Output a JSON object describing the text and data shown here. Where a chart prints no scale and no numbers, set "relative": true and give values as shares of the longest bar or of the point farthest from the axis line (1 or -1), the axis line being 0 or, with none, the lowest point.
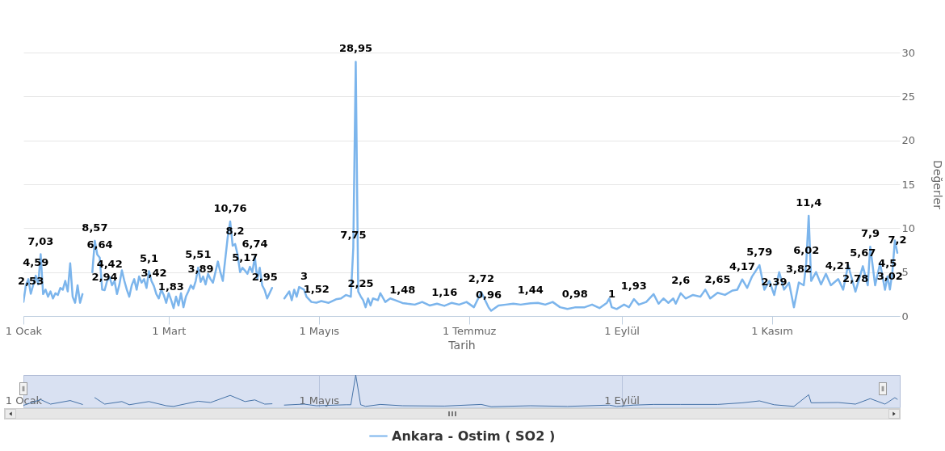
{
  "chart_data": [
    {
      "type": "line",
      "xlabel": "Tarih",
      "ylabel": "Değerler",
      "xlim": [
        "--01-01",
        "--12-23"
      ],
      "ylim": [
        0,
        30
      ],
      "yticks": [
        0,
        5,
        10,
        15,
        20,
        25,
        30
      ],
      "xticks": [
        {
          "value": "--01-01",
          "label": "1 Ocak"
        },
        {
          "value": "--03-01",
          "label": "1 Mart"
        },
        {
          "value": "--05-01",
          "label": "1 Mayıs"
        },
        {
          "value": "--07-01",
          "label": "1 Temmuz"
        },
        {
          "value": "--09-01",
          "label": "1 Eylül"
        },
        {
          "value": "--11-01",
          "label": "1 Kasım"
        }
      ],
      "grid": "y",
      "legend": "bottom",
      "marker": "none",
      "line_style": "solid",
      "x": [
        "--01-01",
        "--01-02",
        "--01-03",
        "--01-04",
        "--01-06",
        "--01-07",
        "--01-08",
        "--01-09",
        "--01-10",
        "--01-11",
        "--01-12",
        "--01-13",
        "--01-14",
        "--01-15",
        "--01-16",
        "--01-17",
        "--01-18",
        "--01-19",
        "--01-20",
        "--01-21",
        "--01-22",
        "--01-23",
        "--01-24",
        "--01-25",
        "--01-27",
        "--01-29",
        "--01-30",
        "--01-31",
        "--02-01",
        "--02-02",
        "--02-03",
        "--02-04",
        "--02-05",
        "--02-06",
        "--02-07",
        "--02-08",
        "--02-09",
        "--02-10",
        "--02-11",
        "--02-12",
        "--02-13",
        "--02-14",
        "--02-15",
        "--02-16",
        "--02-17",
        "--02-18",
        "--02-19",
        "--02-20",
        "--02-21",
        "--02-22",
        "--02-23",
        "--02-24",
        "--02-25",
        "--02-26",
        "--02-27",
        "--02-28",
        "--03-01",
        "--03-02",
        "--03-03",
        "--03-04",
        "--03-05",
        "--03-06",
        "--03-07",
        "--03-08",
        "--03-09",
        "--03-10",
        "--03-11",
        "--03-12",
        "--03-13",
        "--03-14",
        "--03-15",
        "--03-16",
        "--03-17",
        "--03-18",
        "--03-19",
        "--03-20",
        "--03-21",
        "--03-22",
        "--03-23",
        "--03-24",
        "--03-25",
        "--03-26",
        "--03-27",
        "--03-28",
        "--03-29",
        "--03-30",
        "--03-31",
        "--04-01",
        "--04-02",
        "--04-03",
        "--04-04",
        "--04-05",
        "--04-06",
        "--04-07",
        "--04-08",
        "--04-09",
        "--04-10",
        "--04-11",
        "--04-12",
        "--04-14",
        "--04-17",
        "--04-19",
        "--04-20",
        "--04-21",
        "--04-22",
        "--04-23",
        "--04-25",
        "--04-26",
        "--04-28",
        "--04-30",
        "--05-02",
        "--05-05",
        "--05-08",
        "--05-10",
        "--05-12",
        "--05-14",
        "--05-15",
        "--05-16",
        "--05-17",
        "--05-18",
        "--05-19",
        "--05-20",
        "--05-21",
        "--05-22",
        "--05-23",
        "--05-25",
        "--05-26",
        "--05-28",
        "--05-30",
        "--06-01",
        "--06-04",
        "--06-06",
        "--06-09",
        "--06-12",
        "--06-15",
        "--06-18",
        "--06-21",
        "--06-24",
        "--06-27",
        "--06-30",
        "--07-03",
        "--07-06",
        "--07-09",
        "--07-10",
        "--07-13",
        "--07-16",
        "--07-19",
        "--07-22",
        "--07-26",
        "--07-29",
        "--08-01",
        "--08-04",
        "--08-07",
        "--08-10",
        "--08-13",
        "--08-17",
        "--08-20",
        "--08-23",
        "--08-26",
        "--08-27",
        "--08-28",
        "--08-30",
        "--09-02",
        "--09-04",
        "--09-06",
        "--09-08",
        "--09-11",
        "--09-14",
        "--09-16",
        "--09-18",
        "--09-20",
        "--09-22",
        "--09-23",
        "--09-25",
        "--09-27",
        "--09-30",
        "--10-03",
        "--10-05",
        "--10-07",
        "--10-10",
        "--10-13",
        "--10-16",
        "--10-18",
        "--10-20",
        "--10-22",
        "--10-24",
        "--10-27",
        "--10-29",
        "--10-31",
        "--11-02",
        "--11-04",
        "--11-06",
        "--11-08",
        "--11-10",
        "--11-12",
        "--11-14",
        "--11-15",
        "--11-16",
        "--11-17",
        "--11-19",
        "--11-21",
        "--11-23",
        "--11-25",
        "--11-28",
        "--11-30",
        "--12-02",
        "--12-05",
        "--12-08",
        "--12-10",
        "--12-11",
        "--12-13",
        "--12-15",
        "--12-17",
        "--12-18",
        "--12-19",
        "--12-20",
        "--12-21",
        "--12-22"
      ],
      "series": [
        {
          "name": "Ankara - Ostim ( SO2 )",
          "color": "#7cb5ec",
          "values": [
            1.6,
            3.5,
            4.2,
            2.53,
            4.59,
            3.6,
            7.03,
            2.5,
            3.0,
            2.2,
            2.8,
            2.0,
            2.6,
            2.4,
            3.2,
            3.0,
            4.0,
            2.8,
            6.0,
            2.2,
            1.5,
            3.5,
            1.5,
            2.5,
            null,
            5.0,
            8.57,
            7.0,
            6.64,
            3.0,
            2.94,
            4.0,
            4.42,
            3.5,
            4.0,
            2.5,
            3.6,
            5.2,
            4.0,
            3.0,
            2.2,
            3.5,
            4.2,
            3.0,
            4.5,
            3.8,
            4.2,
            3.2,
            5.1,
            4.0,
            3.42,
            2.5,
            2.0,
            3.0,
            2.4,
            1.5,
            2.6,
            1.83,
            0.9,
            2.2,
            1.2,
            2.6,
            1.0,
            2.2,
            2.8,
            3.5,
            3.1,
            4.0,
            5.51,
            3.89,
            4.5,
            3.6,
            4.8,
            4.2,
            3.8,
            5.0,
            6.2,
            5.0,
            4.0,
            6.5,
            9.0,
            10.76,
            8.0,
            8.2,
            7.0,
            5.0,
            5.5,
            5.17,
            4.8,
            5.6,
            5.0,
            6.74,
            4.2,
            5.5,
            3.5,
            2.95,
            2.0,
            2.6,
            3.2,
            null,
            2.0,
            2.8,
            1.8,
            3.0,
            2.2,
            3.3,
            3,
            2.2,
            1.6,
            1.52,
            1.7,
            1.5,
            1.9,
            2.0,
            2.4,
            2.2,
            7.75,
            28.95,
            2.8,
            2.25,
            1.8,
            1.0,
            2.0,
            1.2,
            2.0,
            1.8,
            2.6,
            1.6,
            2.0,
            1.8,
            1.48,
            1.4,
            1.3,
            1.6,
            1.2,
            1.4,
            1.16,
            1.5,
            1.3,
            1.6,
            1.0,
            2.72,
            0.96,
            0.6,
            1.2,
            1.3,
            1.4,
            1.3,
            1.44,
            1.5,
            1.3,
            1.6,
            1.0,
            0.8,
            0.98,
            1.0,
            1.3,
            0.9,
            1.5,
            2.0,
            1,
            0.8,
            1.3,
            1.0,
            1.93,
            1.3,
            1.6,
            2.5,
            1.4,
            2.0,
            1.5,
            2.0,
            1.4,
            2.6,
            2.0,
            2.4,
            2.2,
            3.0,
            2.0,
            2.65,
            2.4,
            2.9,
            3.0,
            4.17,
            3.2,
            4.5,
            5.79,
            3.0,
            4.0,
            2.39,
            5.0,
            3.0,
            3.8,
            1.0,
            3.82,
            3.5,
            6.02,
            11.4,
            4.0,
            5.0,
            3.6,
            4.8,
            3.5,
            4.21,
            3.0,
            5.8,
            2.78,
            5.67,
            3.5,
            7.9,
            3.5,
            6.0,
            3.0,
            4.5,
            3.02,
            5.0,
            8.6,
            7.2
          ],
          "value_labels": [
            null,
            null,
            null,
            "2,53",
            "4,59",
            null,
            "7,03",
            null,
            null,
            null,
            null,
            null,
            null,
            null,
            null,
            null,
            null,
            null,
            null,
            null,
            null,
            null,
            null,
            null,
            null,
            null,
            "8,57",
            null,
            "6,64",
            null,
            "2,94",
            null,
            "4,42",
            null,
            null,
            null,
            null,
            null,
            null,
            null,
            null,
            null,
            null,
            null,
            null,
            null,
            null,
            null,
            "5,1",
            null,
            "3,42",
            null,
            null,
            null,
            null,
            null,
            null,
            "1,83",
            null,
            null,
            null,
            null,
            null,
            null,
            null,
            null,
            null,
            null,
            "5,51",
            "3,89",
            null,
            null,
            null,
            null,
            null,
            null,
            null,
            null,
            null,
            null,
            null,
            "10,76",
            null,
            "8,2",
            null,
            null,
            null,
            "5,17",
            null,
            null,
            null,
            "6,74",
            null,
            null,
            null,
            "2,95",
            null,
            null,
            null,
            null,
            null,
            null,
            null,
            null,
            null,
            null,
            "3",
            null,
            null,
            "1,52",
            null,
            null,
            null,
            null,
            null,
            null,
            "7,75",
            "28,95",
            null,
            "2,25",
            null,
            null,
            null,
            null,
            null,
            null,
            null,
            null,
            null,
            null,
            "1,48",
            null,
            null,
            null,
            null,
            null,
            "1,16",
            null,
            null,
            null,
            null,
            "2,72",
            "0,96",
            null,
            null,
            null,
            null,
            null,
            "1,44",
            null,
            null,
            null,
            null,
            null,
            "0,98",
            null,
            null,
            null,
            null,
            null,
            "1",
            null,
            null,
            null,
            "1,93",
            null,
            null,
            null,
            null,
            null,
            null,
            null,
            null,
            "2,6",
            null,
            null,
            null,
            null,
            null,
            "2,65",
            null,
            null,
            null,
            "4,17",
            null,
            null,
            "5,79",
            null,
            null,
            "2,39",
            null,
            null,
            null,
            null,
            "3,82",
            null,
            "6,02",
            "11,4",
            null,
            null,
            null,
            null,
            null,
            "4,21",
            null,
            null,
            "2,78",
            "5,67",
            null,
            "7,9",
            null,
            null,
            null,
            "4,5",
            "3,02",
            null,
            null,
            "7,2"
          ]
        }
      ]
    },
    {
      "type": "line",
      "relative": true,
      "xlim": [
        "--01-01",
        "--12-23"
      ],
      "tick_labels": "x",
      "grid": "x",
      "marker": "none",
      "line_style": "solid",
      "xticks": [
        {
          "value": "--01-01",
          "label": "1 Ocak"
        },
        {
          "value": "--05-01",
          "label": "1 Mayıs"
        },
        {
          "value": "--09-01",
          "label": "1 Eylül"
        }
      ],
      "x": [
        "--01-01",
        "--01-08",
        "--01-12",
        "--01-20",
        "--01-25",
        "--01-27",
        "--01-30",
        "--02-03",
        "--02-10",
        "--02-13",
        "--02-21",
        "--02-28",
        "--03-03",
        "--03-13",
        "--03-18",
        "--03-26",
        "--04-01",
        "--04-05",
        "--04-09",
        "--04-12",
        "--04-14",
        "--04-17",
        "--04-25",
        "--04-30",
        "--05-12",
        "--05-14",
        "--05-16",
        "--05-18",
        "--05-20",
        "--05-26",
        "--06-04",
        "--06-21",
        "--07-06",
        "--07-10",
        "--07-26",
        "--08-10",
        "--08-27",
        "--08-30",
        "--09-06",
        "--09-14",
        "--09-25",
        "--10-10",
        "--10-20",
        "--10-27",
        "--11-02",
        "--11-10",
        "--11-16",
        "--11-17",
        "--11-28",
        "--12-05",
        "--12-11",
        "--12-17",
        "--12-21",
        "--12-22"
      ],
      "series": [
        {
          "color": "#4572a7",
          "values": [
            0.06,
            0.24,
            0.1,
            0.21,
            0.09,
            null,
            0.3,
            0.1,
            0.18,
            0.08,
            0.18,
            0.05,
            0.03,
            0.19,
            0.15,
            0.37,
            0.18,
            0.23,
            0.1,
            0.11,
            null,
            0.07,
            0.1,
            0.05,
            0.08,
            0.08,
            1,
            0.08,
            0.03,
            0.09,
            0.05,
            0.04,
            0.09,
            0.02,
            0.05,
            0.03,
            0.07,
            0.03,
            0.07,
            0.09,
            0.09,
            0.09,
            0.14,
            0.2,
            0.08,
            0.03,
            0.39,
            0.14,
            0.15,
            0.1,
            0.27,
            0.1,
            0.3,
            0.25
          ]
        }
      ]
    }
  ]
}
